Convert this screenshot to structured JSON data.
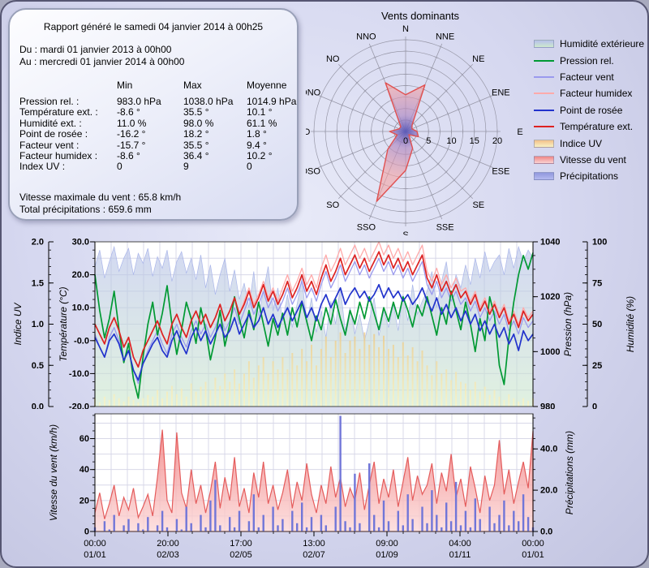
{
  "report": {
    "title": "Rapport généré le samedi 04 janvier 2014 à 00h25",
    "period_from": "Du : mardi 01 janvier 2013 à 00h00",
    "period_to": "Au : mercredi 01 janvier 2014 à 00h00",
    "columns": [
      "Min",
      "Max",
      "Moyenne"
    ],
    "rows": [
      {
        "label": "Pression rel. :",
        "min": "983.0 hPa",
        "max": "1038.0 hPa",
        "mean": "1014.9 hPa"
      },
      {
        "label": "Température ext. :",
        "min": "-8.6 °",
        "max": "35.5 °",
        "mean": "10.1 °"
      },
      {
        "label": "Humidité ext. :",
        "min": "11.0 %",
        "max": "98.0 %",
        "mean": "61.1 %"
      },
      {
        "label": "Point de rosée :",
        "min": "-16.2 °",
        "max": "18.2 °",
        "mean": "1.8 °"
      },
      {
        "label": "Facteur vent :",
        "min": "-15.7 °",
        "max": "35.5 °",
        "mean": "9.4 °"
      },
      {
        "label": "Facteur humidex :",
        "min": "-8.6 °",
        "max": "36.4 °",
        "mean": "10.2 °"
      },
      {
        "label": "Index UV :",
        "min": "0",
        "max": "9",
        "mean": "0"
      }
    ],
    "wind_max": "Vitesse maximale du vent : 65.8 km/h",
    "precip_total": "Total précipitations : 659.6 mm"
  },
  "legend": {
    "items": [
      {
        "label": "Humidité extérieure",
        "type": "area",
        "c": [
          "#b7c0ea",
          "#cde9cd"
        ]
      },
      {
        "label": "Pression rel.",
        "type": "line",
        "c": [
          "#009933"
        ]
      },
      {
        "label": "Facteur vent",
        "type": "line",
        "c": [
          "#9a9aee"
        ]
      },
      {
        "label": "Facteur humidex",
        "type": "line",
        "c": [
          "#ffaaaa"
        ]
      },
      {
        "label": "Point de rosée",
        "type": "line",
        "c": [
          "#2233cc"
        ]
      },
      {
        "label": "Température ext.",
        "type": "line",
        "c": [
          "#dd2222"
        ]
      },
      {
        "label": "Indice UV",
        "type": "area",
        "c": [
          "#f2c08a",
          "#f8f2c4"
        ]
      },
      {
        "label": "Vitesse du vent",
        "type": "area",
        "c": [
          "#ee8585",
          "#fad2d2"
        ]
      },
      {
        "label": "Précipitations",
        "type": "area",
        "c": [
          "#9098dd",
          "#b4b9ef"
        ]
      }
    ]
  },
  "colors": {
    "temperature": "#dd2222",
    "dew_point": "#2233cc",
    "pressure": "#009933",
    "facteur_vent": "#9a9aee",
    "facteur_humidex": "#ffaaaa",
    "humidity_fill": [
      "#b7c0ea",
      "#cde9cd"
    ],
    "humidity_edge": "#aab6ea",
    "uv_fill": [
      "#dc9a42",
      "#f8f4c8"
    ],
    "wind_fill": [
      "#ef6b6b",
      "#fcd9d9"
    ],
    "wind_stroke": "#e45c5c",
    "precip": "#7176d8",
    "rose_stroke": "#e05050",
    "rose_center": "#5858b8",
    "rose_mid": "#b18cc4",
    "rose_outer": "#f4a0a0",
    "grid": "#d8d8e8",
    "axis": "#444444",
    "rose_grid": "#9898a8"
  },
  "chart_data": [
    {
      "id": "wind_rose",
      "type": "radar",
      "title": "Vents dominants",
      "directions": [
        "N",
        "NNE",
        "NE",
        "ENE",
        "E",
        "ESE",
        "SE",
        "SSE",
        "S",
        "SSO",
        "SO",
        "OSO",
        "O",
        "ONO",
        "NO",
        "NNO"
      ],
      "values": [
        8,
        11,
        2,
        1.5,
        2.5,
        3,
        1,
        4,
        8.5,
        16.5,
        5.5,
        2,
        3.5,
        1.5,
        1.5,
        11.5
      ],
      "radial_ticks": [
        0,
        5,
        10,
        15,
        20
      ],
      "rmax": 20,
      "ring_step": 2.5
    },
    {
      "id": "weather_top",
      "type": "area-line",
      "axes": {
        "uv": {
          "label": "Indice UV",
          "range": [
            0,
            2
          ],
          "ticks": [
            "0.0",
            "0.5",
            "1.0",
            "1.5",
            "2.0"
          ],
          "minor": 0.1
        },
        "temp": {
          "label": "Température (°C)",
          "range": [
            -20,
            30
          ],
          "ticks": [
            "-20.0",
            "-10.0",
            "-0.0",
            "10.0",
            "20.0",
            "30.0"
          ],
          "minor": 2.5
        },
        "pressure": {
          "label": "Pression (hPa)",
          "range": [
            980,
            1040
          ],
          "ticks": [
            "980",
            "1000",
            "1020",
            "1040"
          ],
          "minor": 5
        },
        "humidity": {
          "label": "Humidité (%)",
          "range": [
            0,
            100
          ],
          "ticks": [
            "0",
            "25",
            "50",
            "75",
            "100"
          ],
          "minor": 5
        }
      },
      "grid_step_temp": 5,
      "series": {
        "humidity": [
          85,
          95,
          78,
          88,
          97,
          82,
          90,
          96,
          80,
          93,
          87,
          96,
          79,
          91,
          84,
          95,
          76,
          88,
          94,
          81,
          90,
          77,
          92,
          72,
          86,
          68,
          80,
          90,
          70,
          83,
          65,
          75,
          60,
          82,
          55,
          70,
          85,
          58,
          72,
          52,
          68,
          48,
          62,
          78,
          50,
          66,
          45,
          58,
          42,
          64,
          50,
          72,
          46,
          60,
          44,
          56,
          40,
          52,
          66,
          43,
          58,
          48,
          62,
          46,
          68,
          52,
          74,
          56,
          64,
          70,
          82,
          60,
          76,
          88,
          66,
          80,
          72,
          86,
          74,
          90,
          78,
          94,
          82,
          88,
          92,
          80,
          96,
          84,
          97,
          88,
          95,
          90
        ],
        "uv": [
          0.1,
          0.05,
          0.12,
          0.08,
          0.15,
          0.1,
          0.06,
          0.12,
          0.08,
          0.05,
          0.1,
          0.14,
          0.12,
          0.2,
          0.1,
          0.18,
          0.25,
          0.15,
          0.22,
          0.12,
          0.28,
          0.18,
          0.24,
          0.3,
          0.2,
          0.35,
          0.25,
          0.4,
          0.3,
          0.45,
          0.28,
          0.4,
          0.55,
          0.35,
          0.5,
          0.6,
          0.4,
          0.55,
          0.45,
          0.6,
          0.45,
          0.65,
          0.5,
          0.7,
          0.55,
          0.75,
          0.5,
          0.7,
          0.85,
          0.6,
          0.8,
          0.9,
          0.65,
          0.8,
          0.85,
          0.7,
          0.9,
          0.75,
          0.88,
          0.72,
          0.86,
          0.7,
          0.75,
          0.6,
          0.78,
          0.62,
          0.72,
          0.55,
          0.68,
          0.5,
          0.38,
          0.55,
          0.4,
          0.45,
          0.32,
          0.42,
          0.3,
          0.28,
          0.2,
          0.3,
          0.18,
          0.24,
          0.14,
          0.2,
          0.12,
          0.08,
          0.15,
          0.1,
          0.06,
          0.1,
          0.07,
          0.1
        ],
        "facteur_vent": [
          2,
          -2,
          -5,
          1,
          4,
          0,
          -6,
          -3,
          -9,
          -13,
          -7,
          -3,
          0,
          3,
          -1,
          -4,
          2,
          5,
          1,
          -2,
          3,
          6,
          2,
          5,
          1,
          4,
          8,
          3,
          6,
          10,
          5,
          9,
          13,
          8,
          11,
          15,
          10,
          13,
          9,
          12,
          16,
          11,
          14,
          18,
          13,
          16,
          12,
          17,
          21,
          16,
          19,
          23,
          18,
          21,
          24,
          20,
          23,
          19,
          22,
          25,
          21,
          24,
          20,
          23,
          19,
          22,
          18,
          21,
          24,
          17,
          14,
          18,
          13,
          16,
          12,
          15,
          11,
          13,
          9,
          12,
          7,
          10,
          6,
          9,
          5,
          8,
          3,
          6,
          2,
          7,
          4,
          6
        ],
        "facteur_humidex": [
          5,
          2,
          -1,
          4,
          7,
          3,
          -2,
          1,
          -5,
          -8,
          -3,
          0,
          3,
          6,
          2,
          -1,
          5,
          8,
          4,
          1,
          6,
          9,
          5,
          8,
          4,
          7,
          11,
          6,
          9,
          13,
          8,
          12,
          16,
          11,
          14,
          18,
          13,
          16,
          12,
          16,
          20,
          15,
          18,
          22,
          17,
          20,
          16,
          22,
          26,
          21,
          24,
          28,
          23,
          26,
          29,
          25,
          28,
          24,
          27,
          30,
          26,
          29,
          25,
          28,
          24,
          27,
          23,
          26,
          29,
          21,
          18,
          22,
          17,
          20,
          16,
          19,
          15,
          16,
          12,
          15,
          10,
          13,
          9,
          12,
          8,
          11,
          6,
          9,
          5,
          10,
          7,
          9
        ],
        "pressure": [
          1028,
          1015,
          1005,
          1012,
          1022,
          1008,
          996,
          1003,
          990,
          983,
          998,
          1010,
          1018,
          1006,
          1014,
          1024,
          1010,
          999,
          1008,
          1018,
          1012,
          1003,
          1016,
          1008,
          997,
          1005,
          1015,
          1002,
          1010,
          1020,
          1012,
          1005,
          1015,
          1008,
          1018,
          1010,
          1002,
          1012,
          1006,
          1014,
          1006,
          1016,
          1009,
          1018,
          1011,
          1004,
          1013,
          1008,
          1016,
          1010,
          1019,
          1012,
          1006,
          1015,
          1010,
          1018,
          1012,
          1020,
          1014,
          1008,
          1016,
          1011,
          1018,
          1012,
          1020,
          1015,
          1009,
          1017,
          1013,
          1020,
          1013,
          1006,
          1016,
          1010,
          1022,
          1015,
          1008,
          1018,
          1010,
          1000,
          1012,
          1004,
          1020,
          1013,
          995,
          988,
          1005,
          1018,
          1028,
          1035,
          1030,
          1036
        ],
        "dew_point": [
          1,
          -2,
          -5,
          0,
          2,
          -1,
          -6,
          -3,
          -9,
          -12,
          -7,
          -4,
          -1,
          1,
          -3,
          -5,
          0,
          3,
          -1,
          -4,
          1,
          4,
          0,
          3,
          -1,
          2,
          5,
          1,
          3,
          7,
          2,
          5,
          8,
          4,
          6,
          10,
          5,
          8,
          4,
          7,
          10,
          6,
          9,
          12,
          7,
          10,
          6,
          11,
          14,
          10,
          13,
          16,
          11,
          14,
          16,
          13,
          15,
          12,
          14,
          17,
          13,
          16,
          13,
          15,
          12,
          14,
          11,
          13,
          16,
          12,
          9,
          13,
          8,
          11,
          7,
          10,
          6,
          9,
          5,
          8,
          3,
          6,
          2,
          5,
          1,
          4,
          -1,
          2,
          -3,
          3,
          0,
          2
        ],
        "temperature": [
          5,
          2,
          -1,
          4,
          7,
          3,
          -2,
          1,
          -5,
          -8,
          -3,
          0,
          3,
          6,
          2,
          -1,
          5,
          8,
          4,
          1,
          6,
          9,
          5,
          8,
          4,
          7,
          11,
          6,
          9,
          13,
          8,
          11,
          15,
          10,
          13,
          17,
          12,
          15,
          11,
          14,
          18,
          13,
          16,
          20,
          15,
          18,
          14,
          19,
          23,
          18,
          21,
          25,
          20,
          23,
          26,
          22,
          25,
          21,
          24,
          27,
          23,
          26,
          22,
          25,
          21,
          24,
          20,
          23,
          26,
          19,
          16,
          20,
          15,
          18,
          14,
          17,
          13,
          15,
          11,
          14,
          9,
          12,
          8,
          11,
          7,
          10,
          5,
          8,
          4,
          9,
          6,
          8
        ]
      }
    },
    {
      "id": "weather_bottom",
      "type": "area-bar",
      "axes": {
        "wind": {
          "label": "Vitesse du vent (km/h)",
          "range": [
            0,
            76
          ],
          "ticks": [
            "0",
            "20",
            "40",
            "60"
          ],
          "minor": 5
        },
        "precip": {
          "label": "Précipitations (mm)",
          "range": [
            0,
            57
          ],
          "ticks": [
            "0.0",
            "20.0",
            "40.0"
          ],
          "minor": 5
        }
      },
      "grid_step_wind": 10,
      "series": {
        "wind": [
          12,
          25,
          8,
          18,
          30,
          10,
          22,
          14,
          28,
          9,
          16,
          24,
          10,
          35,
          65.8,
          20,
          12,
          64,
          25,
          15,
          40,
          18,
          30,
          12,
          26,
          45,
          15,
          35,
          20,
          48,
          16,
          28,
          12,
          38,
          22,
          45,
          18,
          30,
          14,
          25,
          40,
          15,
          32,
          20,
          44,
          24,
          12,
          30,
          18,
          42,
          22,
          35,
          16,
          28,
          20,
          38,
          14,
          30,
          45,
          18,
          34,
          22,
          40,
          16,
          32,
          48,
          20,
          36,
          24,
          30,
          44,
          18,
          38,
          26,
          50,
          22,
          34,
          16,
          42,
          28,
          12,
          36,
          20,
          30,
          59,
          24,
          40,
          18,
          32,
          45,
          28,
          65
        ],
        "precip": [
          2,
          0,
          5,
          1,
          8,
          0,
          3,
          6,
          0,
          4,
          1,
          7,
          0,
          3,
          10,
          2,
          0,
          6,
          1,
          12,
          4,
          0,
          8,
          2,
          15,
          25,
          3,
          0,
          7,
          2,
          10,
          0,
          5,
          18,
          2,
          8,
          0,
          12,
          3,
          6,
          0,
          10,
          4,
          14,
          2,
          7,
          0,
          8,
          3,
          0,
          12,
          56,
          5,
          2,
          28,
          4,
          0,
          33,
          8,
          2,
          15,
          5,
          0,
          10,
          3,
          18,
          6,
          0,
          12,
          4,
          20,
          8,
          2,
          14,
          5,
          24,
          3,
          10,
          2,
          16,
          6,
          0,
          12,
          4,
          8,
          15,
          3,
          10,
          5,
          18,
          7,
          2
        ]
      },
      "x_ticks": [
        {
          "time": "00:00",
          "date": "01/01"
        },
        {
          "time": "20:00",
          "date": "02/03"
        },
        {
          "time": "17:00",
          "date": "02/05"
        },
        {
          "time": "13:00",
          "date": "02/07"
        },
        {
          "time": "09:00",
          "date": "01/09"
        },
        {
          "time": "04:00",
          "date": "01/11"
        },
        {
          "time": "00:00",
          "date": "01/01"
        }
      ]
    }
  ]
}
